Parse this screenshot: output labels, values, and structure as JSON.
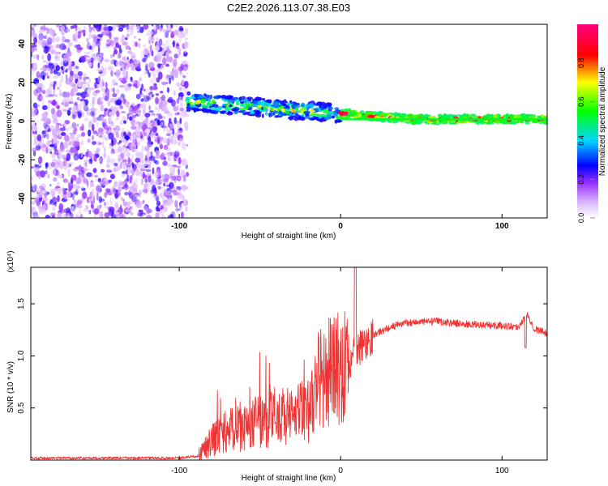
{
  "title": "C2E2.2026.113.07.38.E03",
  "chart_data": [
    {
      "type": "heatmap",
      "name": "spectrogram",
      "xlabel": "Height of straight line (km)",
      "ylabel": "Frequency (Hz)",
      "xlim": [
        -192,
        128
      ],
      "ylim": [
        -50,
        50
      ],
      "xticks": [
        -100,
        0,
        100
      ],
      "xtick_labels": [
        "-100",
        "0",
        "100"
      ],
      "yticks": [
        -40,
        -20,
        0,
        20,
        40
      ],
      "ytick_labels": [
        "-40",
        "-20",
        "0",
        "20",
        "40"
      ],
      "colorbar": {
        "label": "Normalized spectral amplitude",
        "range": [
          0,
          1
        ],
        "ticks": [
          0,
          0.2,
          0.4,
          0.6,
          0.8
        ],
        "tick_labels": [
          "0.0",
          "0.2",
          "0.4",
          "0.6",
          "0.8"
        ],
        "colors": [
          "#ffffff",
          "#9a30ff",
          "#0000ff",
          "#00e0ff",
          "#00ff00",
          "#ffff00",
          "#ff0000",
          "#ff0080"
        ]
      },
      "regions": [
        {
          "name": "noise",
          "x": [
            -192,
            -95
          ],
          "freq": [
            -50,
            50
          ],
          "level": 0.12
        },
        {
          "name": "signal-band",
          "x": [
            -95,
            128
          ],
          "freq_center_start": 10,
          "freq_center_end": 1,
          "level": 0.6
        }
      ]
    },
    {
      "type": "line",
      "name": "snr",
      "xlabel": "Height of straight line (km)",
      "ylabel": "SNR (10 * v/v)",
      "y_multiplier": "(x10⁴)",
      "xlim": [
        -192,
        128
      ],
      "ylim": [
        0,
        1.85
      ],
      "xticks": [
        -100,
        0,
        100
      ],
      "xtick_labels": [
        "-100",
        "0",
        "100"
      ],
      "yticks": [
        0.5,
        1.0,
        1.5
      ],
      "ytick_labels": [
        "0.5",
        "1.0",
        "1.5"
      ],
      "color": "#ee3333",
      "series": [
        {
          "name": "SNR",
          "x": [
            -192,
            -160,
            -130,
            -100,
            -88,
            -80,
            -70,
            -60,
            -50,
            -40,
            -30,
            -20,
            -15,
            -10,
            -5,
            0,
            5,
            10,
            20,
            30,
            40,
            60,
            80,
            100,
            110,
            116,
            120,
            128
          ],
          "y": [
            0.02,
            0.02,
            0.02,
            0.02,
            0.04,
            0.2,
            0.28,
            0.3,
            0.38,
            0.42,
            0.42,
            0.48,
            0.75,
            0.82,
            0.86,
            0.88,
            0.93,
            1.05,
            1.2,
            1.27,
            1.32,
            1.33,
            1.3,
            1.29,
            1.28,
            1.4,
            1.26,
            1.22
          ]
        }
      ]
    }
  ]
}
